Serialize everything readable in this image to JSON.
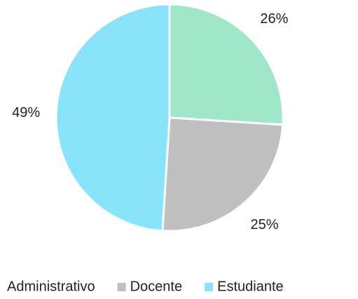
{
  "chart_data": {
    "type": "pie",
    "categories": [
      "Administrativo",
      "Docente",
      "Estudiante"
    ],
    "values": [
      26,
      25,
      49
    ],
    "value_labels": [
      "26%",
      "25%",
      "49%"
    ],
    "colors": [
      "#a0e6c8",
      "#c0c0c0",
      "#87e4fb"
    ],
    "legend": "bottom"
  }
}
